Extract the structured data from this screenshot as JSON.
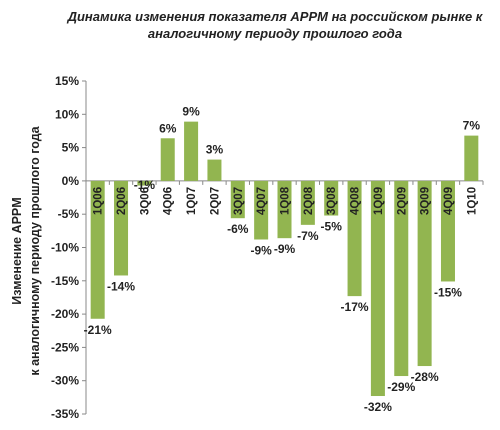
{
  "chart_data": {
    "type": "bar",
    "title_line1": "Динамика изменения показателя APPM на российском рынке к",
    "title_line2": "аналогичному периоду прошлого года",
    "ylabel_line1": "Изменение APPM",
    "ylabel_line2": "к аналогичному периоду прошлого года",
    "xlabel": "",
    "ylim": [
      -35,
      15
    ],
    "yticks": [
      "15%",
      "10%",
      "5%",
      "0%",
      "-5%",
      "-10%",
      "-15%",
      "-20%",
      "-25%",
      "-30%",
      "-35%"
    ],
    "ytick_values": [
      15,
      10,
      5,
      0,
      -5,
      -10,
      -15,
      -20,
      -25,
      -30,
      -35
    ],
    "categories": [
      "1Q06",
      "2Q06",
      "3Q06",
      "4Q06",
      "1Q07",
      "2Q07",
      "3Q07",
      "4Q07",
      "1Q08",
      "2Q08",
      "3Q08",
      "4Q08",
      "1Q09",
      "2Q09",
      "3Q09",
      "4Q09",
      "1Q10"
    ],
    "values": [
      -20.7,
      -14.2,
      -0.7,
      6.4,
      8.9,
      3.2,
      -5.6,
      -8.8,
      -8.6,
      -6.6,
      -5.2,
      -17.3,
      -32.3,
      -29.3,
      -27.8,
      -15.1,
      6.8
    ],
    "data_labels": [
      "-21%",
      "-14%",
      "-1%",
      "6%",
      "9%",
      "3%",
      "-6%",
      "-9%",
      "-9%",
      "-7%",
      "-5%",
      "-17%",
      "-32%",
      "-29%",
      "-28%",
      "-15%",
      "7%"
    ],
    "bar_color": "#92b550",
    "grid": false,
    "legend": "none"
  }
}
